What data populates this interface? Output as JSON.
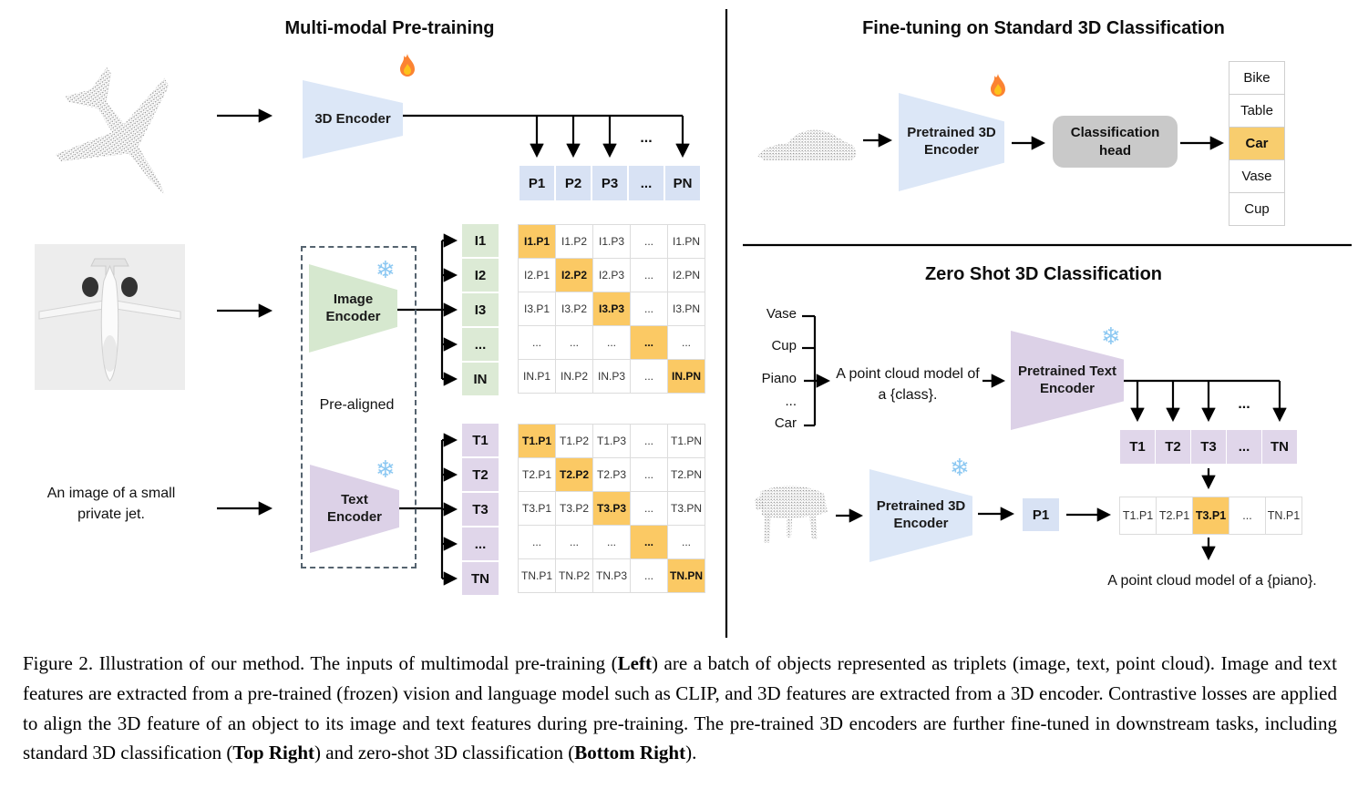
{
  "left_panel": {
    "title": "Multi-modal Pre-training",
    "encoder_3d": {
      "label": "3D Encoder"
    },
    "p_row": [
      "P1",
      "P2",
      "P3",
      "...",
      "PN"
    ],
    "image_encoder": {
      "line1": "Image",
      "line2": "Encoder"
    },
    "i_cells": [
      "I1",
      "I2",
      "I3",
      "...",
      "IN"
    ],
    "i_matrix": [
      [
        "I1.P1",
        "I1.P2",
        "I1.P3",
        "...",
        "I1.PN"
      ],
      [
        "I2.P1",
        "I2.P2",
        "I2.P3",
        "...",
        "I2.PN"
      ],
      [
        "I3.P1",
        "I3.P2",
        "I3.P3",
        "...",
        "I3.PN"
      ],
      [
        "...",
        "...",
        "...",
        "...",
        "..."
      ],
      [
        "IN.P1",
        "IN.P2",
        "IN.P3",
        "...",
        "IN.PN"
      ]
    ],
    "pre_aligned_label": "Pre-aligned",
    "image_caption_line1": "An image of a small",
    "image_caption_line2": "private jet.",
    "text_encoder": {
      "line1": "Text",
      "line2": "Encoder"
    },
    "t_cells": [
      "T1",
      "T2",
      "T3",
      "...",
      "TN"
    ],
    "t_matrix": [
      [
        "T1.P1",
        "T1.P2",
        "T1.P3",
        "...",
        "T1.PN"
      ],
      [
        "T2.P1",
        "T2.P2",
        "T2.P3",
        "...",
        "T2.PN"
      ],
      [
        "T3.P1",
        "T3.P2",
        "T3.P3",
        "...",
        "T3.PN"
      ],
      [
        "...",
        "...",
        "...",
        "...",
        "..."
      ],
      [
        "TN.P1",
        "TN.P2",
        "TN.P3",
        "...",
        "TN.PN"
      ]
    ]
  },
  "top_right": {
    "title": "Fine-tuning on Standard 3D Classification",
    "encoder": {
      "line1": "Pretrained 3D",
      "line2": "Encoder"
    },
    "head": {
      "line1": "Classification",
      "line2": "head"
    },
    "classes": [
      "Bike",
      "Table",
      "Car",
      "Vase",
      "Cup"
    ],
    "highlight_index": 2
  },
  "bottom_right": {
    "title": "Zero Shot 3D Classification",
    "class_list": [
      "Vase",
      "Cup",
      "Piano",
      "...",
      "Car"
    ],
    "prompt_line1": "A point cloud model of",
    "prompt_line2": "a {class}.",
    "text_encoder": {
      "line1": "Pretrained Text",
      "line2": "Encoder"
    },
    "t_row": [
      "T1",
      "T2",
      "T3",
      "...",
      "TN"
    ],
    "encoder_3d": {
      "line1": "Pretrained 3D",
      "line2": "Encoder"
    },
    "p1_label": "P1",
    "result_row": [
      "T1.P1",
      "T2.P1",
      "T3.P1",
      "...",
      "TN.P1"
    ],
    "highlight_index": 2,
    "output_text": "A point cloud model of a {piano}."
  },
  "icons": {
    "fire": "fire-icon (trainable)",
    "snowflake": "snowflake-icon (frozen)",
    "snowflake_glyph": "❄"
  },
  "misc": {
    "ellipsis": "..."
  },
  "colors": {
    "highlight_orange": "#fbc964",
    "list_highlight_orange": "#f8cd6e",
    "cell_blue": "#d8e2f4",
    "cell_green": "#dcead5",
    "cell_purple": "#e0d6ea",
    "trap_blue": "#dce7f7",
    "trap_green": "#d6e8cf",
    "trap_purple": "#dcd1e7",
    "head_gray": "#c9c9c9",
    "snowflake_blue": "#8cc8f2"
  },
  "caption": {
    "segments": [
      {
        "t": "Figure 2. Illustration of our method. The inputs of multimodal pre-training (",
        "b": false
      },
      {
        "t": "Left",
        "b": true
      },
      {
        "t": ") are a batch of objects represented as triplets (image, text, point cloud).  Image and text features are extracted from a pre-trained (frozen) vision and language model such as CLIP, and 3D features are extracted from a 3D encoder.  Contrastive losses are applied to align the 3D feature of an object to its image and text features during pre-training.  The pre-trained 3D encoders are further fine-tuned in downstream tasks, including standard 3D classification (",
        "b": false
      },
      {
        "t": "Top Right",
        "b": true
      },
      {
        "t": ") and zero-shot 3D classification (",
        "b": false
      },
      {
        "t": "Bottom Right",
        "b": true
      },
      {
        "t": ").",
        "b": false
      }
    ]
  }
}
